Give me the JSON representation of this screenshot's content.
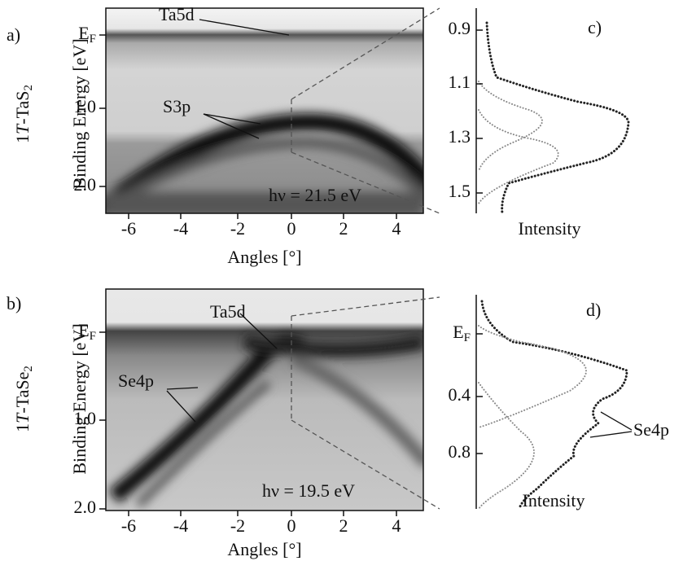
{
  "panels": {
    "a": {
      "label": "a)",
      "sample": [
        "1",
        "T",
        "-TaS",
        "2"
      ],
      "y_axis_title": "Binding Energy  [eV]",
      "y_ticks": [
        {
          "main": "E",
          "sub": "F"
        },
        "1.0",
        "2.0"
      ],
      "x_ticks": [
        "-6",
        "-4",
        "-2",
        "0",
        "2",
        "4"
      ],
      "x_axis_title": "Angles [°]",
      "annotations": [
        "Ta5d",
        "S3p"
      ],
      "photon_energy": "hν = 21.5 eV"
    },
    "b": {
      "label": "b)",
      "sample": [
        "1",
        "T",
        "-TaSe",
        "2"
      ],
      "y_axis_title": "Binding Energy  [eV]",
      "y_ticks": [
        {
          "main": "E",
          "sub": "F"
        },
        "1.0",
        "2.0"
      ],
      "x_ticks": [
        "-6",
        "-4",
        "-2",
        "0",
        "2",
        "4"
      ],
      "x_axis_title": "Angles [°]",
      "annotations": [
        "Ta5d",
        "Se4p"
      ],
      "photon_energy": "hν = 19.5 eV"
    },
    "c": {
      "label": "c)",
      "y_ticks": [
        "0.9",
        "1.1",
        "1.3",
        "1.5"
      ],
      "x_axis_title": "Intensity"
    },
    "d": {
      "label": "d)",
      "y_ticks": [
        {
          "main": "E",
          "sub": "F"
        },
        "0.4",
        "0.8"
      ],
      "x_axis_title": "Intensity",
      "annotation": "Se4p"
    }
  }
}
